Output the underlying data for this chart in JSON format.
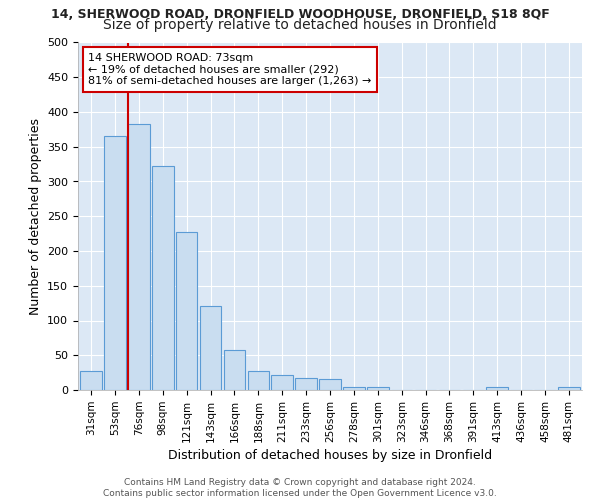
{
  "title": "14, SHERWOOD ROAD, DRONFIELD WOODHOUSE, DRONFIELD, S18 8QF",
  "subtitle": "Size of property relative to detached houses in Dronfield",
  "xlabel": "Distribution of detached houses by size in Dronfield",
  "ylabel": "Number of detached properties",
  "categories": [
    "31sqm",
    "53sqm",
    "76sqm",
    "98sqm",
    "121sqm",
    "143sqm",
    "166sqm",
    "188sqm",
    "211sqm",
    "233sqm",
    "256sqm",
    "278sqm",
    "301sqm",
    "323sqm",
    "346sqm",
    "368sqm",
    "391sqm",
    "413sqm",
    "436sqm",
    "458sqm",
    "481sqm"
  ],
  "values": [
    28,
    365,
    383,
    323,
    227,
    121,
    58,
    28,
    22,
    17,
    16,
    5,
    5,
    0,
    0,
    0,
    0,
    5,
    0,
    0,
    5
  ],
  "bar_color": "#c9ddf0",
  "bar_edge_color": "#5b9bd5",
  "property_line_index": 2,
  "property_line_color": "#cc0000",
  "annotation_line1": "14 SHERWOOD ROAD: 73sqm",
  "annotation_line2": "← 19% of detached houses are smaller (292)",
  "annotation_line3": "81% of semi-detached houses are larger (1,263) →",
  "annotation_box_color": "#ffffff",
  "annotation_box_edge_color": "#cc0000",
  "footer_text": "Contains HM Land Registry data © Crown copyright and database right 2024.\nContains public sector information licensed under the Open Government Licence v3.0.",
  "bg_color": "#f0f4fa",
  "plot_bg_color": "#dce8f5",
  "ylim": [
    0,
    500
  ],
  "yticks": [
    0,
    50,
    100,
    150,
    200,
    250,
    300,
    350,
    400,
    450,
    500
  ],
  "grid_color": "#ffffff",
  "title_fontsize": 9,
  "subtitle_fontsize": 10
}
